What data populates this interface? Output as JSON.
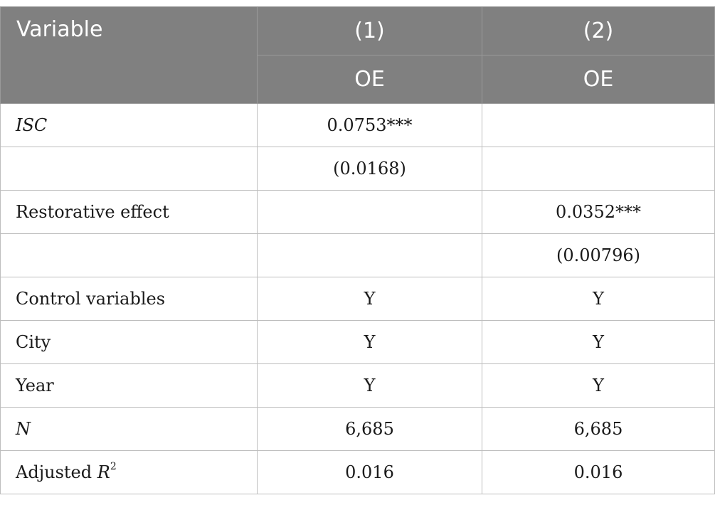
{
  "table": {
    "header": {
      "variable": "Variable",
      "col1_number": "(1)",
      "col2_number": "(2)",
      "col1_dep": "OE",
      "col2_dep": "OE"
    },
    "rows": [
      {
        "label": "ISC",
        "italic": true,
        "col1": "0.0753***",
        "col2": ""
      },
      {
        "label": "",
        "italic": false,
        "col1": "(0.0168)",
        "col2": ""
      },
      {
        "label": "Restorative effect",
        "italic": false,
        "col1": "",
        "col2": "0.0352***"
      },
      {
        "label": "",
        "italic": false,
        "col1": "",
        "col2": "(0.00796)"
      },
      {
        "label": "Control variables",
        "italic": false,
        "col1": "Y",
        "col2": "Y"
      },
      {
        "label": "City",
        "italic": false,
        "col1": "Y",
        "col2": "Y"
      },
      {
        "label": "Year",
        "italic": false,
        "col1": "Y",
        "col2": "Y"
      },
      {
        "label": "N",
        "italic": true,
        "col1": "6,685",
        "col2": "6,685"
      },
      {
        "label_prefix": "Adjusted ",
        "label_var": "R",
        "label_sup": "2",
        "col1": "0.016",
        "col2": "0.016"
      }
    ]
  }
}
